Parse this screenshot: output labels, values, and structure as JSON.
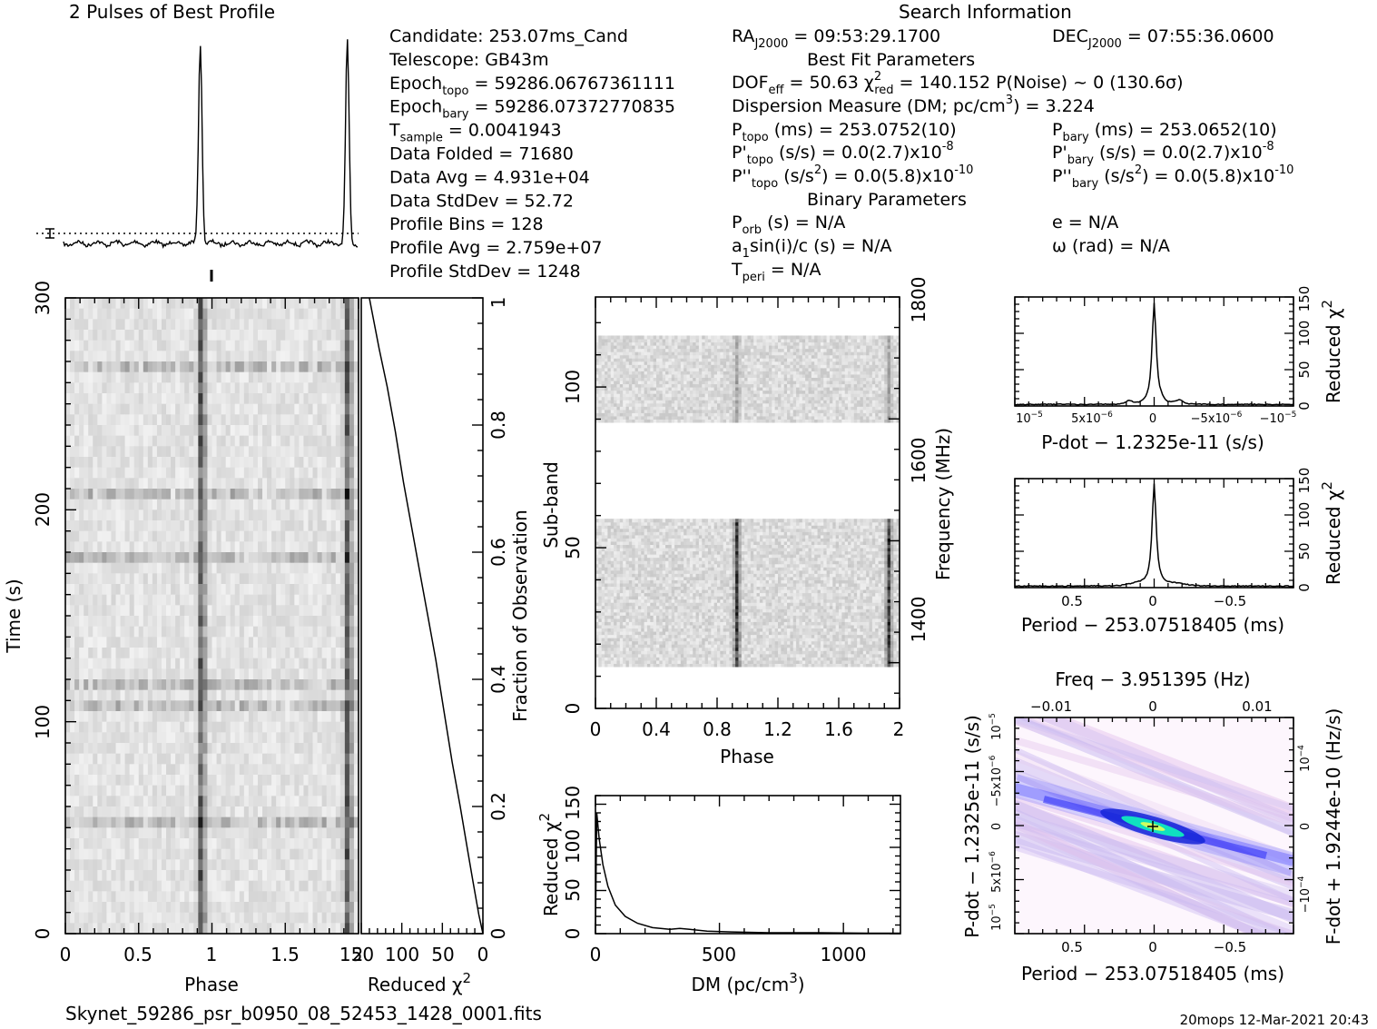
{
  "header": {
    "profile_title": "2 Pulses of Best Profile",
    "search_title": "Search Information",
    "best_fit_title": "Best Fit Parameters",
    "binary_title": "Binary Parameters"
  },
  "info_left": [
    [
      "Candidate:  253.07ms_Cand",
      ""
    ],
    [
      "Telescope:  GB43m",
      ""
    ],
    [
      "Epoch",
      "topo",
      " = 59286.06767361111"
    ],
    [
      "Epoch",
      "bary",
      " = 59286.07372770835"
    ],
    [
      "T",
      "sample",
      "       =  0.0041943"
    ],
    [
      "Data Folded     =  71680",
      ""
    ],
    [
      "Data Avg        =  4.931e+04",
      ""
    ],
    [
      "Data StdDev     =  52.72",
      ""
    ],
    [
      "Profile Bins    =  128",
      ""
    ],
    [
      "Profile Avg     =  2.759e+07",
      ""
    ],
    [
      "Profile StdDev  =  1248",
      ""
    ]
  ],
  "info_mid": {
    "ra": "RA",
    "ra_sub": "J2000",
    "ra_val": " = 09:53:29.1700",
    "dof": "DOF",
    "dof_sub": "eff",
    "dof_val": " = 50.63  χ",
    "chi_sup": "2",
    "chi_sub": "red",
    "chi_val": " = 140.152  P(Noise) ~ 0   (130.6σ)",
    "dm_line": "Dispersion Measure (DM; pc/cm",
    "dm_sup": "3",
    "dm_val": ") = 3.224",
    "ptopo": "P",
    "ptopo_sub": "topo",
    "ptopo_val": " (ms) =  253.0752(10)",
    "pdtopo": "P'",
    "pdtopo_sub": "topo",
    "pdtopo_val": " (s/s) = 0.0(2.7)x10",
    "pdtopo_exp": "-8",
    "pddtopo": "P''",
    "pddtopo_sub": "topo",
    "pddtopo_val": " (s/s",
    "pddtopo_sup": "2",
    "pddtopo_val2": ") = 0.0(5.8)x10",
    "pddtopo_exp": "-10",
    "porb": "P",
    "porb_sub": "orb",
    "porb_val": " (s) = N/A",
    "asini": "a",
    "asini_sub": "1",
    "asini_val": "sin(i)/c (s) = N/A",
    "tperi": "T",
    "tperi_sub": "peri",
    "tperi_val": " = N/A"
  },
  "info_right": {
    "dec": "DEC",
    "dec_sub": "J2000",
    "dec_val": " = 07:55:36.0600",
    "pbary": "P",
    "pbary_sub": "bary",
    "pbary_val": " (ms) =  253.0652(10)",
    "pdbary": "P'",
    "pdbary_sub": "bary",
    "pdbary_val": " (s/s) = 0.0(2.7)x10",
    "pdbary_exp": "-8",
    "pddbary": "P''",
    "pddbary_sub": "bary",
    "pddbary_val": " (s/s",
    "pddbary_sup": "2",
    "pddbary_val2": ") = 0.0(5.8)x10",
    "pddbary_exp": "-10",
    "ecc": "e = N/A",
    "omega": "ω (rad) = N/A"
  },
  "footer": {
    "filename": "Skynet_59286_psr_b0950_08_52453_1428_0001.fits",
    "stamp": "20mops 12-Mar-2021 20:43"
  },
  "chart_data": [
    {
      "id": "profile",
      "type": "line",
      "title": "2 Pulses of Best Profile",
      "x_range": [
        0,
        2
      ],
      "pulse_phases": [
        0.93,
        1.93
      ],
      "baseline_level": "dotted line near base"
    },
    {
      "id": "time_phase",
      "type": "heatmap",
      "xlabel": "Phase",
      "ylabel": "Time (s)",
      "xlim": [
        0,
        2
      ],
      "ylim": [
        0,
        300
      ],
      "x_ticks": [
        "0",
        "0.5",
        "1",
        "1.5",
        "2"
      ],
      "y_ticks": [
        "0",
        "100",
        "200",
        "300"
      ],
      "pulse_phases": [
        0.93,
        1.93
      ]
    },
    {
      "id": "chi_vs_time",
      "type": "line",
      "xlabel": "Reduced χ",
      "xlabel_sup": "2",
      "ylabel": "Fraction of Observation",
      "xlim": [
        150,
        0
      ],
      "ylim": [
        0,
        1
      ],
      "x_ticks": [
        "150",
        "100",
        "50",
        "0"
      ],
      "y_ticks": [
        "0",
        "0.2",
        "0.4",
        "0.6",
        "0.8",
        "1"
      ],
      "x": [
        0,
        5,
        12,
        20,
        28,
        38,
        48,
        58,
        68,
        78,
        88,
        98,
        108,
        118,
        128,
        140
      ],
      "y": [
        0.0,
        0.03,
        0.08,
        0.14,
        0.2,
        0.27,
        0.35,
        0.43,
        0.5,
        0.57,
        0.64,
        0.71,
        0.79,
        0.86,
        0.92,
        1.0
      ]
    },
    {
      "id": "subband_phase",
      "type": "heatmap",
      "xlabel": "Phase",
      "ylabel": "Sub-band",
      "y2label": "Frequency (MHz)",
      "xlim": [
        0,
        2
      ],
      "ylim": [
        0,
        128
      ],
      "x_ticks": [
        "0",
        "0.4",
        "0.8",
        "1.2",
        "1.6",
        "2"
      ],
      "y_ticks": [
        "0",
        "50",
        "100"
      ],
      "y2_ticks": [
        "1400",
        "1600",
        "1800"
      ],
      "pulse_phases": [
        0.93,
        1.93
      ],
      "data_bands": [
        [
          13,
          59
        ],
        [
          89,
          116
        ]
      ]
    },
    {
      "id": "chi_vs_dm",
      "type": "line",
      "xlabel": "DM (pc/cm",
      "xlabel_sup": "3",
      "xlabel_end": ")",
      "ylabel": "Reduced χ",
      "ylabel_sup": "2",
      "xlim": [
        0,
        1230
      ],
      "ylim": [
        0,
        160
      ],
      "x_ticks": [
        "0",
        "500",
        "1000"
      ],
      "y_ticks": [
        "0",
        "50",
        "100",
        "150"
      ],
      "x": [
        0,
        5,
        15,
        30,
        50,
        80,
        120,
        170,
        230,
        300,
        340,
        380,
        450,
        550,
        700,
        900,
        1100,
        1230
      ],
      "y": [
        0,
        140,
        110,
        80,
        55,
        33,
        20,
        12,
        7,
        5,
        6,
        5,
        3,
        2,
        1,
        1,
        0.5,
        0.5
      ]
    },
    {
      "id": "chi_vs_pdot",
      "type": "line",
      "xlabel": "P-dot − 1.2325e-11 (s/s)",
      "ylabel": "Reduced χ",
      "ylabel_sup": "2",
      "ylim": [
        0,
        150
      ],
      "y_ticks": [
        "0",
        "50",
        "100",
        "150"
      ],
      "x_tick_labels": [
        "10",
        "5x10",
        "0",
        "−5x10",
        "−10"
      ],
      "x_tick_exps": [
        "−5",
        "−6",
        "",
        "−6",
        "−5"
      ],
      "peak_value": 140
    },
    {
      "id": "chi_vs_period",
      "type": "line",
      "xlabel": "Period − 253.07518405 (ms)",
      "ylabel": "Reduced χ",
      "ylabel_sup": "2",
      "ylim": [
        0,
        150
      ],
      "xlim": [
        0.9,
        -0.9
      ],
      "x_ticks": [
        "0.5",
        "0",
        "−0.5"
      ],
      "y_ticks": [
        "0",
        "50",
        "100",
        "150"
      ],
      "peak_value": 140
    },
    {
      "id": "pdot_vs_period",
      "type": "heatmap",
      "title": "Freq − 3.951395 (Hz)",
      "xlabel": "Period − 253.07518405 (ms)",
      "ylabel": "P-dot − 1.2325e-11 (s/s)",
      "y2label": "F-dot + 1.9244e-10 (Hz/s)",
      "top_ticks": [
        "−0.01",
        "0",
        "0.01"
      ],
      "bottom_ticks": [
        "0.5",
        "0",
        "−0.5"
      ],
      "left_tick_labels": [
        "10",
        "5x10",
        "0",
        "−5x10",
        "10"
      ],
      "left_tick_exps": [
        "−5",
        "−6",
        "",
        "−6",
        "−5"
      ],
      "right_tick_labels": [
        "10",
        "0",
        "−10"
      ],
      "right_tick_exps": [
        "−4",
        "",
        "−4"
      ]
    }
  ]
}
